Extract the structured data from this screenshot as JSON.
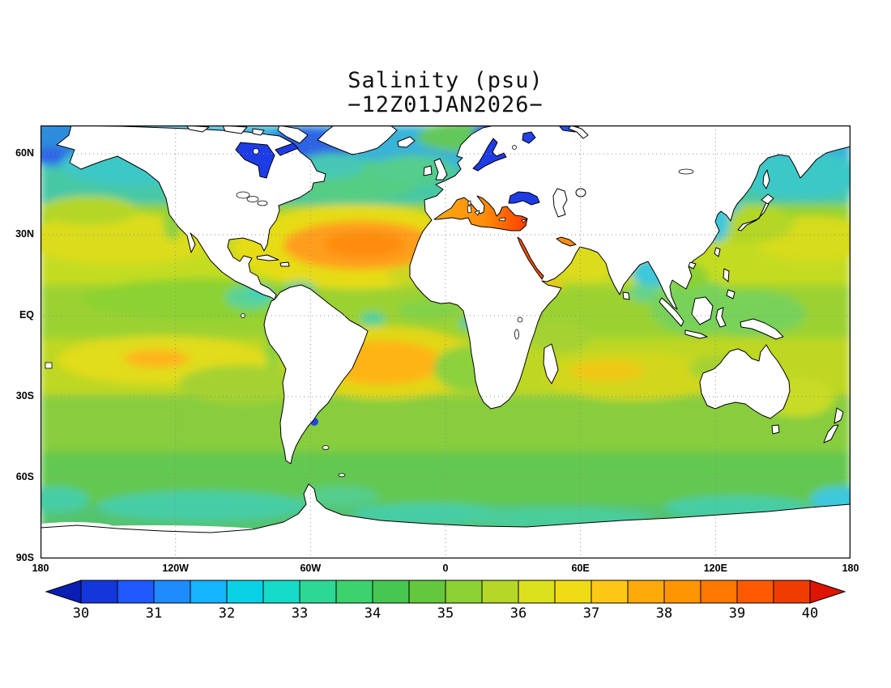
{
  "page": {
    "background": "#ffffff"
  },
  "title": {
    "line1": "Salinity (psu)",
    "line2": "−12Z01JAN2026−"
  },
  "axes": {
    "y_ticks": [
      "60N",
      "30N",
      "EQ",
      "30S",
      "60S",
      "90S"
    ],
    "x_ticks": [
      "180",
      "120W",
      "60W",
      "0",
      "60E",
      "120E",
      "180"
    ]
  },
  "colorbar": {
    "labels": [
      "30",
      "31",
      "32",
      "33",
      "34",
      "35",
      "36",
      "37",
      "38",
      "39",
      "40"
    ],
    "cell_colors": [
      "#1437dc",
      "#1e5aff",
      "#1e8cff",
      "#14b4ff",
      "#0ad2e6",
      "#14dcc8",
      "#2dd796",
      "#3cd26e",
      "#46c850",
      "#64c83c",
      "#8cd232",
      "#b4d728",
      "#dce11e",
      "#f0dc14",
      "#ffc814",
      "#ffaa0a",
      "#ff9600",
      "#ff7800",
      "#ff5a00",
      "#f03c00"
    ],
    "below_min_color": "#0a1eb4",
    "above_max_color": "#dc1400",
    "outline_color": "#000000"
  },
  "chart_data": {
    "type": "heatmap",
    "title": "Salinity (psu)",
    "timestamp_label": "−12Z01JAN2026−",
    "variable": "sea surface salinity",
    "units": "psu",
    "projection": "global equirectangular lat-lon map",
    "lon_range": [
      -180,
      180
    ],
    "lat_range": [
      -90,
      72
    ],
    "x_ticks": [
      "180",
      "120W",
      "60W",
      "0",
      "60E",
      "120E",
      "180"
    ],
    "y_ticks": [
      "60N",
      "30N",
      "EQ",
      "30S",
      "60S",
      "90S"
    ],
    "grid": "dotted graticule every 30 degrees",
    "land": "white with black coastlines",
    "colorbar": {
      "min": 30,
      "max": 40,
      "label_interval": 1,
      "cell_step": 0.5,
      "cell_colors": [
        "#1437dc",
        "#1e5aff",
        "#1e8cff",
        "#14b4ff",
        "#0ad2e6",
        "#14dcc8",
        "#2dd796",
        "#3cd26e",
        "#46c850",
        "#64c83c",
        "#8cd232",
        "#b4d728",
        "#dce11e",
        "#f0dc14",
        "#ffc814",
        "#ffaa0a",
        "#ff9600",
        "#ff7800",
        "#ff5a00",
        "#f03c00"
      ],
      "below_min_color": "#0a1eb4",
      "above_max_color": "#dc1400",
      "shape": "horizontal bar with triangular arrow ends"
    },
    "regions": [
      {
        "name": "North Atlantic subtropical gyre core",
        "approx_psu": 37.5
      },
      {
        "name": "Mediterranean Sea west",
        "approx_psu": 38
      },
      {
        "name": "Mediterranean Sea east",
        "approx_psu": 39.5
      },
      {
        "name": "Red Sea",
        "approx_psu": 40
      },
      {
        "name": "Persian Gulf",
        "approx_psu": 39
      },
      {
        "name": "South Atlantic subtropical gyre",
        "approx_psu": 37.5
      },
      {
        "name": "South Pacific subtropics",
        "approx_psu": 36.5
      },
      {
        "name": "North Pacific subtropics",
        "approx_psu": 35.5
      },
      {
        "name": "South Indian subtropics",
        "approx_psu": 36
      },
      {
        "name": "Arabian Sea",
        "approx_psu": 36.5
      },
      {
        "name": "Bay of Bengal",
        "approx_psu": 32.5
      },
      {
        "name": "Maritime continent seas",
        "approx_psu": 34
      },
      {
        "name": "Equatorial eastern Pacific fresh pool",
        "approx_psu": 33.5
      },
      {
        "name": "Mid-latitude open ocean background",
        "approx_psu": 35
      },
      {
        "name": "Southern Ocean",
        "approx_psu": 34
      },
      {
        "name": "Antarctic coastal band",
        "approx_psu": 33
      },
      {
        "name": "Subarctic North Pacific / Sea of Okhotsk",
        "approx_psu": 32.5
      },
      {
        "name": "North Atlantic drift 50-60N",
        "approx_psu": 34.5
      },
      {
        "name": "Labrador Sea / Baffin Bay",
        "approx_psu": 31
      },
      {
        "name": "Hudson Bay",
        "approx_psu": 30
      },
      {
        "name": "Baltic Sea",
        "approx_psu": 30
      },
      {
        "name": "Black Sea",
        "approx_psu": 30.5
      },
      {
        "name": "Arctic shelf margins",
        "approx_psu": 30.5
      },
      {
        "name": "Rio de la Plata plume",
        "approx_psu": 30.5
      }
    ]
  }
}
